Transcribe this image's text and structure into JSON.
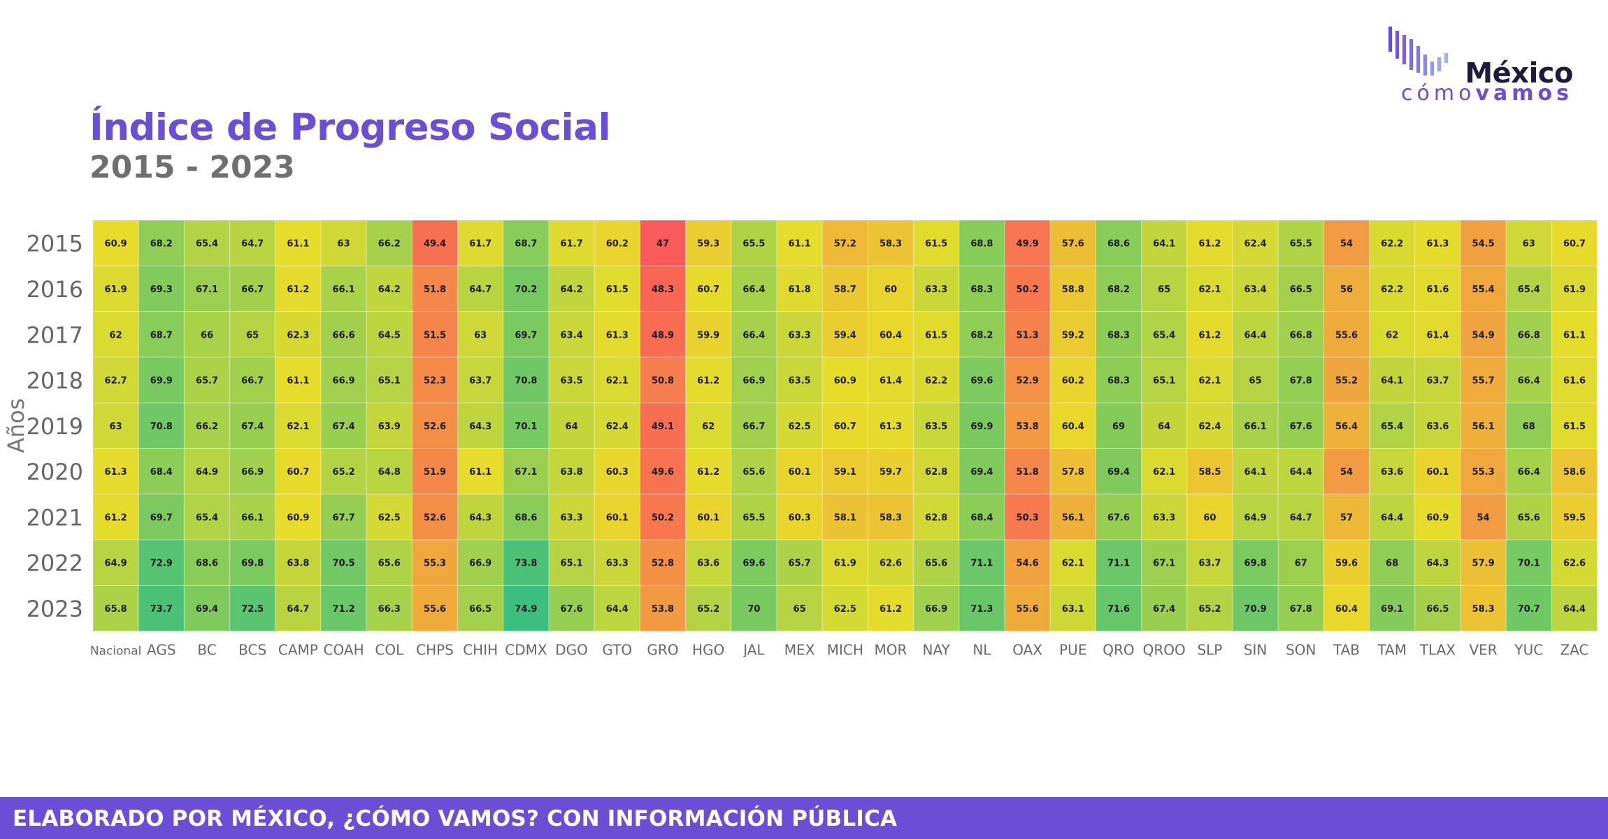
{
  "header": {
    "title": "Índice de Progreso Social",
    "subtitle": "2015 - 2023"
  },
  "logo": {
    "word1": "México",
    "word2_light": "cómo",
    "word2_bold": "vamos"
  },
  "footer": {
    "text": "ELABORADO POR MÉXICO, ¿CÓMO VAMOS? CON INFORMACIÓN PÚBLICA"
  },
  "colors": {
    "brand": "#6a4fd6",
    "scale_low": "#fb5a5a",
    "scale_mid": "#e8dc2a",
    "scale_high": "#3cbf7e"
  },
  "chart_data": {
    "type": "heatmap",
    "ylabel": "Años",
    "xlabel": "",
    "color_scale": "red-yellow-green",
    "x": [
      "Nacional",
      "AGS",
      "BC",
      "BCS",
      "CAMP",
      "COAH",
      "COL",
      "CHPS",
      "CHIH",
      "CDMX",
      "DGO",
      "GTO",
      "GRO",
      "HGO",
      "JAL",
      "MEX",
      "MICH",
      "MOR",
      "NAY",
      "NL",
      "OAX",
      "PUE",
      "QRO",
      "QROO",
      "SLP",
      "SIN",
      "SON",
      "TAB",
      "TAM",
      "TLAX",
      "VER",
      "YUC",
      "ZAC"
    ],
    "y": [
      "2015",
      "2016",
      "2017",
      "2018",
      "2019",
      "2020",
      "2021",
      "2022",
      "2023"
    ],
    "values": [
      [
        60.9,
        68.2,
        65.4,
        64.7,
        61.1,
        63,
        66.2,
        49.4,
        61.7,
        68.7,
        61.7,
        60.2,
        47,
        59.3,
        65.5,
        61.1,
        57.2,
        58.3,
        61.5,
        68.8,
        49.9,
        57.6,
        68.6,
        64.1,
        61.2,
        62.4,
        65.5,
        54,
        62.2,
        61.3,
        54.5,
        63,
        60.7
      ],
      [
        61.9,
        69.3,
        67.1,
        66.7,
        61.2,
        66.1,
        64.2,
        51.8,
        64.7,
        70.2,
        64.2,
        61.5,
        48.3,
        60.7,
        66.4,
        61.8,
        58.7,
        60,
        63.3,
        68.3,
        50.2,
        58.8,
        68.2,
        65,
        62.1,
        63.4,
        66.5,
        56,
        62.2,
        61.6,
        55.4,
        65.4,
        61.9
      ],
      [
        62,
        68.7,
        66,
        65,
        62.3,
        66.6,
        64.5,
        51.5,
        63,
        69.7,
        63.4,
        61.3,
        48.9,
        59.9,
        66.4,
        63.3,
        59.4,
        60.4,
        61.5,
        68.2,
        51.3,
        59.2,
        68.3,
        65.4,
        61.2,
        64.4,
        66.8,
        55.6,
        62,
        61.4,
        54.9,
        66.8,
        61.1
      ],
      [
        62.7,
        69.9,
        65.7,
        66.7,
        61.1,
        66.9,
        65.1,
        52.3,
        63.7,
        70.8,
        63.5,
        62.1,
        50.8,
        61.2,
        66.9,
        63.5,
        60.9,
        61.4,
        62.2,
        69.6,
        52.9,
        60.2,
        68.3,
        65.1,
        62.1,
        65,
        67.8,
        55.2,
        64.1,
        63.7,
        55.7,
        66.4,
        61.6
      ],
      [
        63,
        70.8,
        66.2,
        67.4,
        62.1,
        67.4,
        63.9,
        52.6,
        64.3,
        70.1,
        64,
        62.4,
        49.1,
        62,
        66.7,
        62.5,
        60.7,
        61.3,
        63.5,
        69.9,
        53.8,
        60.4,
        69,
        64,
        62.4,
        66.1,
        67.6,
        56.4,
        65.4,
        63.6,
        56.1,
        68,
        61.5
      ],
      [
        61.3,
        68.4,
        64.9,
        66.9,
        60.7,
        65.2,
        64.8,
        51.9,
        61.1,
        67.1,
        63.8,
        60.3,
        49.6,
        61.2,
        65.6,
        60.1,
        59.1,
        59.7,
        62.8,
        69.4,
        51.8,
        57.8,
        69.4,
        62.1,
        58.5,
        64.1,
        64.4,
        54,
        63.6,
        60.1,
        55.3,
        66.4,
        58.6
      ],
      [
        61.2,
        69.7,
        65.4,
        66.1,
        60.9,
        67.7,
        62.5,
        52.6,
        64.3,
        68.6,
        63.3,
        60.1,
        50.2,
        60.1,
        65.5,
        60.3,
        58.1,
        58.3,
        62.8,
        68.4,
        50.3,
        56.1,
        67.6,
        63.3,
        60,
        64.9,
        64.7,
        57,
        64.4,
        60.9,
        54,
        65.6,
        59.5
      ],
      [
        64.9,
        72.9,
        68.6,
        69.8,
        63.8,
        70.5,
        65.6,
        55.3,
        66.9,
        73.8,
        65.1,
        63.3,
        52.8,
        63.6,
        69.6,
        65.7,
        61.9,
        62.6,
        65.6,
        71.1,
        54.6,
        62.1,
        71.1,
        67.1,
        63.7,
        69.8,
        67,
        59.6,
        68,
        64.3,
        57.9,
        70.1,
        62.6
      ],
      [
        65.8,
        73.7,
        69.4,
        72.5,
        64.7,
        71.2,
        66.3,
        55.6,
        66.5,
        74.9,
        67.6,
        64.4,
        53.8,
        65.2,
        70,
        65,
        62.5,
        61.2,
        66.9,
        71.3,
        55.6,
        63.1,
        71.6,
        67.4,
        65.2,
        70.9,
        67.8,
        60.4,
        69.1,
        66.5,
        58.3,
        70.7,
        64.4
      ]
    ]
  }
}
